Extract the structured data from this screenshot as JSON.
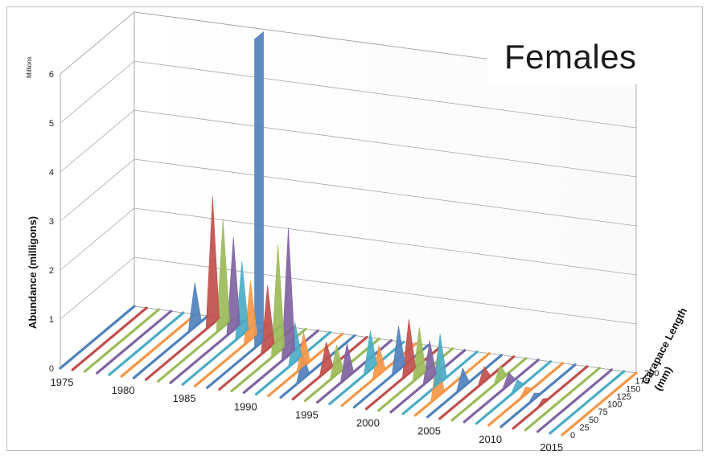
{
  "chart_data": {
    "type": "area",
    "title": "Females",
    "display_units": "Millions",
    "ylabel": "Abundance (milligons)",
    "zlabel": "Carapace Length (mm)",
    "ylim": [
      0,
      6
    ],
    "y_ticks": [
      0,
      1,
      2,
      3,
      4,
      5,
      6
    ],
    "x_ticks": [
      1975,
      1980,
      1985,
      1990,
      1995,
      2000,
      2005,
      2010,
      2015
    ],
    "z_ticks": [
      0,
      25,
      50,
      75,
      100,
      125,
      150,
      175,
      200
    ],
    "xlim": [
      1975,
      2016
    ],
    "zlim": [
      0,
      200
    ],
    "grid": true,
    "series_colors": [
      "#4f81bd",
      "#c0504d",
      "#9bbb59",
      "#8064a2",
      "#4bacc6",
      "#f79646"
    ],
    "peaks": [
      {
        "year": 1981,
        "length": 165,
        "value": 0.9
      },
      {
        "year": 1982,
        "length": 180,
        "value": 2.6
      },
      {
        "year": 1983,
        "length": 175,
        "value": 2.2
      },
      {
        "year": 1984,
        "length": 170,
        "value": 1.9
      },
      {
        "year": 1985,
        "length": 160,
        "value": 1.5
      },
      {
        "year": 1986,
        "length": 150,
        "value": 1.2
      },
      {
        "year": 1987,
        "length": 140,
        "value": 6.3
      },
      {
        "year": 1988,
        "length": 130,
        "value": 1.3
      },
      {
        "year": 1989,
        "length": 125,
        "value": 2.2
      },
      {
        "year": 1990,
        "length": 120,
        "value": 2.6
      },
      {
        "year": 1991,
        "length": 105,
        "value": 0.8
      },
      {
        "year": 1992,
        "length": 95,
        "value": 0.7
      },
      {
        "year": 1993,
        "length": 60,
        "value": 0.5
      },
      {
        "year": 1994,
        "length": 90,
        "value": 0.6
      },
      {
        "year": 1995,
        "length": 85,
        "value": 0.6
      },
      {
        "year": 1996,
        "length": 80,
        "value": 0.7
      },
      {
        "year": 1997,
        "length": 110,
        "value": 0.8
      },
      {
        "year": 1998,
        "length": 100,
        "value": 0.6
      },
      {
        "year": 1999,
        "length": 120,
        "value": 0.9
      },
      {
        "year": 2000,
        "length": 115,
        "value": 1.1
      },
      {
        "year": 2001,
        "length": 110,
        "value": 1.0
      },
      {
        "year": 2002,
        "length": 105,
        "value": 0.8
      },
      {
        "year": 2003,
        "length": 100,
        "value": 1.0
      },
      {
        "year": 2004,
        "length": 60,
        "value": 0.9
      },
      {
        "year": 2005,
        "length": 95,
        "value": 0.4
      },
      {
        "year": 2006,
        "length": 120,
        "value": 0.3
      },
      {
        "year": 2007,
        "length": 130,
        "value": 0.3
      },
      {
        "year": 2008,
        "length": 120,
        "value": 0.25
      },
      {
        "year": 2009,
        "length": 110,
        "value": 0.2
      },
      {
        "year": 2010,
        "length": 100,
        "value": 0.15
      },
      {
        "year": 2011,
        "length": 90,
        "value": 0.12
      },
      {
        "year": 2012,
        "length": 80,
        "value": 0.1
      }
    ]
  }
}
